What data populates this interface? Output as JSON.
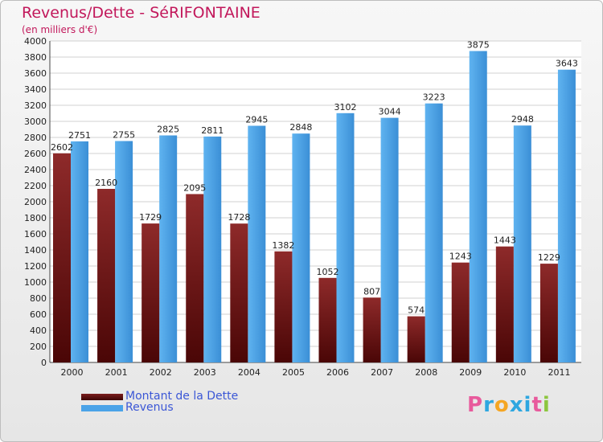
{
  "header": {
    "title": "Revenus/Dette - SéRIFONTAINE",
    "subtitle": "(en milliers d'€)"
  },
  "legend": {
    "debt_label": "Montant de la Dette",
    "revenue_label": "Revenus"
  },
  "logo": {
    "letters": [
      "P",
      "r",
      "o",
      "x",
      "i",
      "t",
      "i"
    ],
    "colors": [
      "#e85a9c",
      "#2ea7e0",
      "#f5a623",
      "#2ea7e0",
      "#2ea7e0",
      "#e85a9c",
      "#8dc63f"
    ]
  },
  "colors": {
    "debt": "#7a1c1c",
    "revenue": "#4aa3e8"
  },
  "chart_data": {
    "type": "bar",
    "title": "Revenus/Dette - SéRIFONTAINE",
    "ylabel": "(en milliers d'€)",
    "xlabel": "",
    "categories": [
      "2000",
      "2001",
      "2002",
      "2003",
      "2004",
      "2005",
      "2006",
      "2007",
      "2008",
      "2009",
      "2010",
      "2011"
    ],
    "series": [
      {
        "name": "Montant de la Dette",
        "values": [
          2602,
          2160,
          1729,
          2095,
          1728,
          1382,
          1052,
          807,
          574,
          1243,
          1443,
          1229
        ]
      },
      {
        "name": "Revenus",
        "values": [
          2751,
          2755,
          2825,
          2811,
          2945,
          2848,
          3102,
          3044,
          3223,
          3875,
          2948,
          3643
        ]
      }
    ],
    "ylim": [
      0,
      4000
    ],
    "yticks": [
      0,
      200,
      400,
      600,
      800,
      1000,
      1200,
      1400,
      1600,
      1800,
      2000,
      2200,
      2400,
      2600,
      2800,
      3000,
      3200,
      3400,
      3600,
      3800,
      4000
    ],
    "grid": true,
    "legend_position": "bottom-left"
  }
}
